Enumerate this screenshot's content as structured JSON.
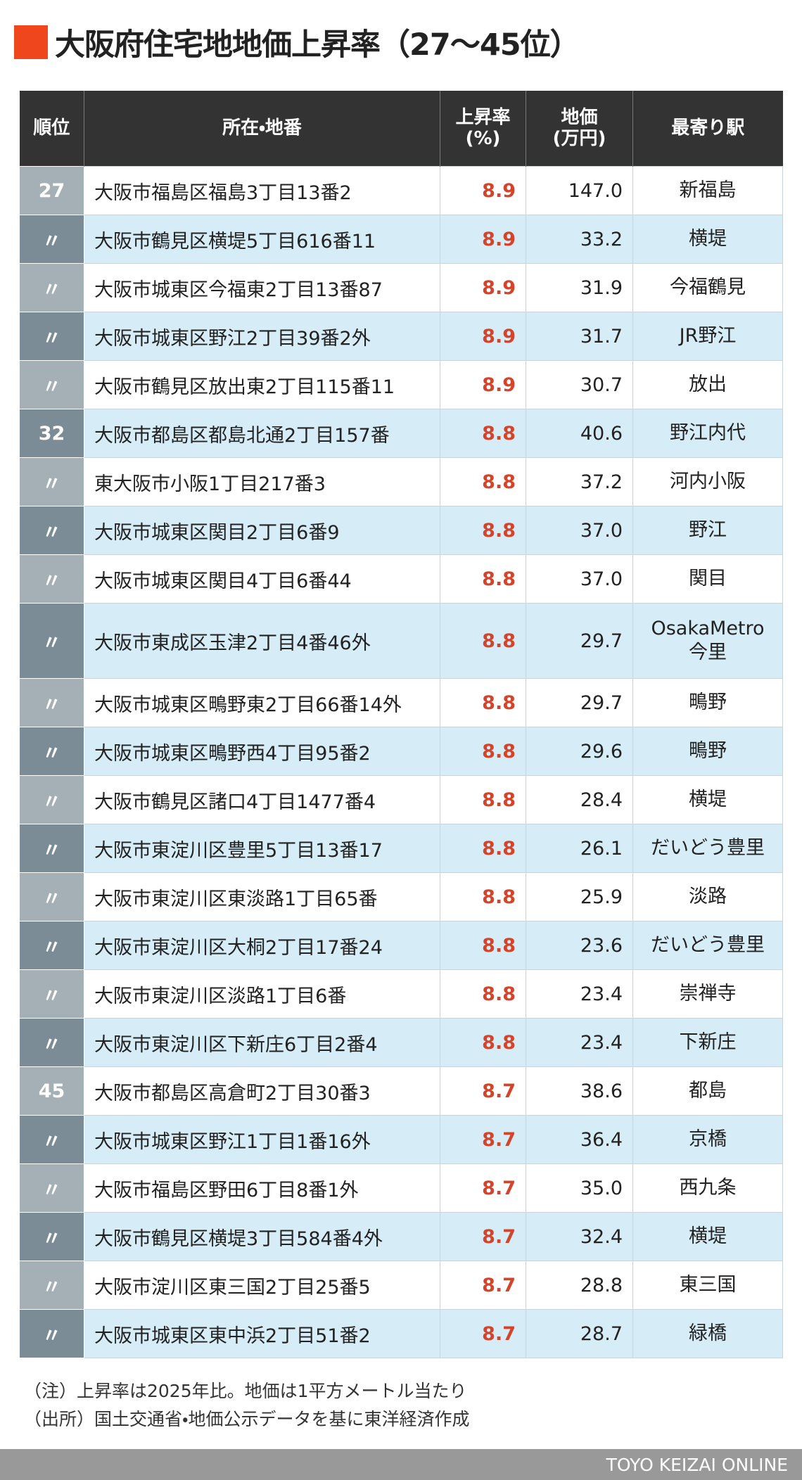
{
  "header": {
    "title": "大阪府住宅地地価上昇率（27〜45位）"
  },
  "table": {
    "columns": [
      [
        "順位"
      ],
      [
        "所在・地番"
      ],
      [
        "上昇率",
        "(%)"
      ],
      [
        "地価",
        "(万円)"
      ],
      [
        "最寄り駅"
      ]
    ],
    "rows": [
      [
        "27",
        "大阪市福島区福島3丁目13番2",
        "8.9",
        "147.0",
        "新福島"
      ],
      [
        "〃",
        "大阪市鶴見区横堤5丁目616番11",
        "8.9",
        "33.2",
        "横堤"
      ],
      [
        "〃",
        "大阪市城東区今福東2丁目13番87",
        "8.9",
        "31.9",
        "今福鶴見"
      ],
      [
        "〃",
        "大阪市城東区野江2丁目39番2外",
        "8.9",
        "31.7",
        "JR野江"
      ],
      [
        "〃",
        "大阪市鶴見区放出東2丁目115番11",
        "8.9",
        "30.7",
        "放出"
      ],
      [
        "32",
        "大阪市都島区都島北通2丁目157番",
        "8.8",
        "40.6",
        "野江内代"
      ],
      [
        "〃",
        "東大阪市小阪1丁目217番3",
        "8.8",
        "37.2",
        "河内小阪"
      ],
      [
        "〃",
        "大阪市城東区関目2丁目6番9",
        "8.8",
        "37.0",
        "野江"
      ],
      [
        "〃",
        "大阪市城東区関目4丁目6番44",
        "8.8",
        "37.0",
        "関目"
      ],
      [
        "〃",
        "大阪市東成区玉津2丁目4番46外",
        "8.8",
        "29.7",
        [
          "OsakaMetro",
          "今里"
        ]
      ],
      [
        "〃",
        "大阪市城東区鴫野東2丁目66番14外",
        "8.8",
        "29.7",
        "鴫野"
      ],
      [
        "〃",
        "大阪市城東区鴫野西4丁目95番2",
        "8.8",
        "29.6",
        "鴫野"
      ],
      [
        "〃",
        "大阪市鶴見区諸口4丁目1477番4",
        "8.8",
        "28.4",
        "横堤"
      ],
      [
        "〃",
        "大阪市東淀川区豊里5丁目13番17",
        "8.8",
        "26.1",
        "だいどう豊里"
      ],
      [
        "〃",
        "大阪市東淀川区東淡路1丁目65番",
        "8.8",
        "25.9",
        "淡路"
      ],
      [
        "〃",
        "大阪市東淀川区大桐2丁目17番24",
        "8.8",
        "23.6",
        "だいどう豊里"
      ],
      [
        "〃",
        "大阪市東淀川区淡路1丁目6番",
        "8.8",
        "23.4",
        "崇禅寺"
      ],
      [
        "〃",
        "大阪市東淀川区下新庄6丁目2番4",
        "8.8",
        "23.4",
        "下新庄"
      ],
      [
        "45",
        "大阪市都島区高倉町2丁目30番3",
        "8.7",
        "38.6",
        "都島"
      ],
      [
        "〃",
        "大阪市城東区野江1丁目1番16外",
        "8.7",
        "36.4",
        "京橋"
      ],
      [
        "〃",
        "大阪市福島区野田6丁目8番1外",
        "8.7",
        "35.0",
        "西九条"
      ],
      [
        "〃",
        "大阪市鶴見区横堤3丁目584番4外",
        "8.7",
        "32.4",
        "横堤"
      ],
      [
        "〃",
        "大阪市淀川区東三国2丁目25番5",
        "8.7",
        "28.8",
        "東三国"
      ],
      [
        "〃",
        "大阪市城東区東中浜2丁目51番2",
        "8.7",
        "28.7",
        "緑橋"
      ]
    ]
  },
  "notes": [
    "（注）上昇率は2025年比。地価は1平方メートル当たり",
    "（出所）国土交通省・地価公示データを基に東洋経済作成"
  ],
  "footer": "TOYO KEIZAI ONLINE"
}
